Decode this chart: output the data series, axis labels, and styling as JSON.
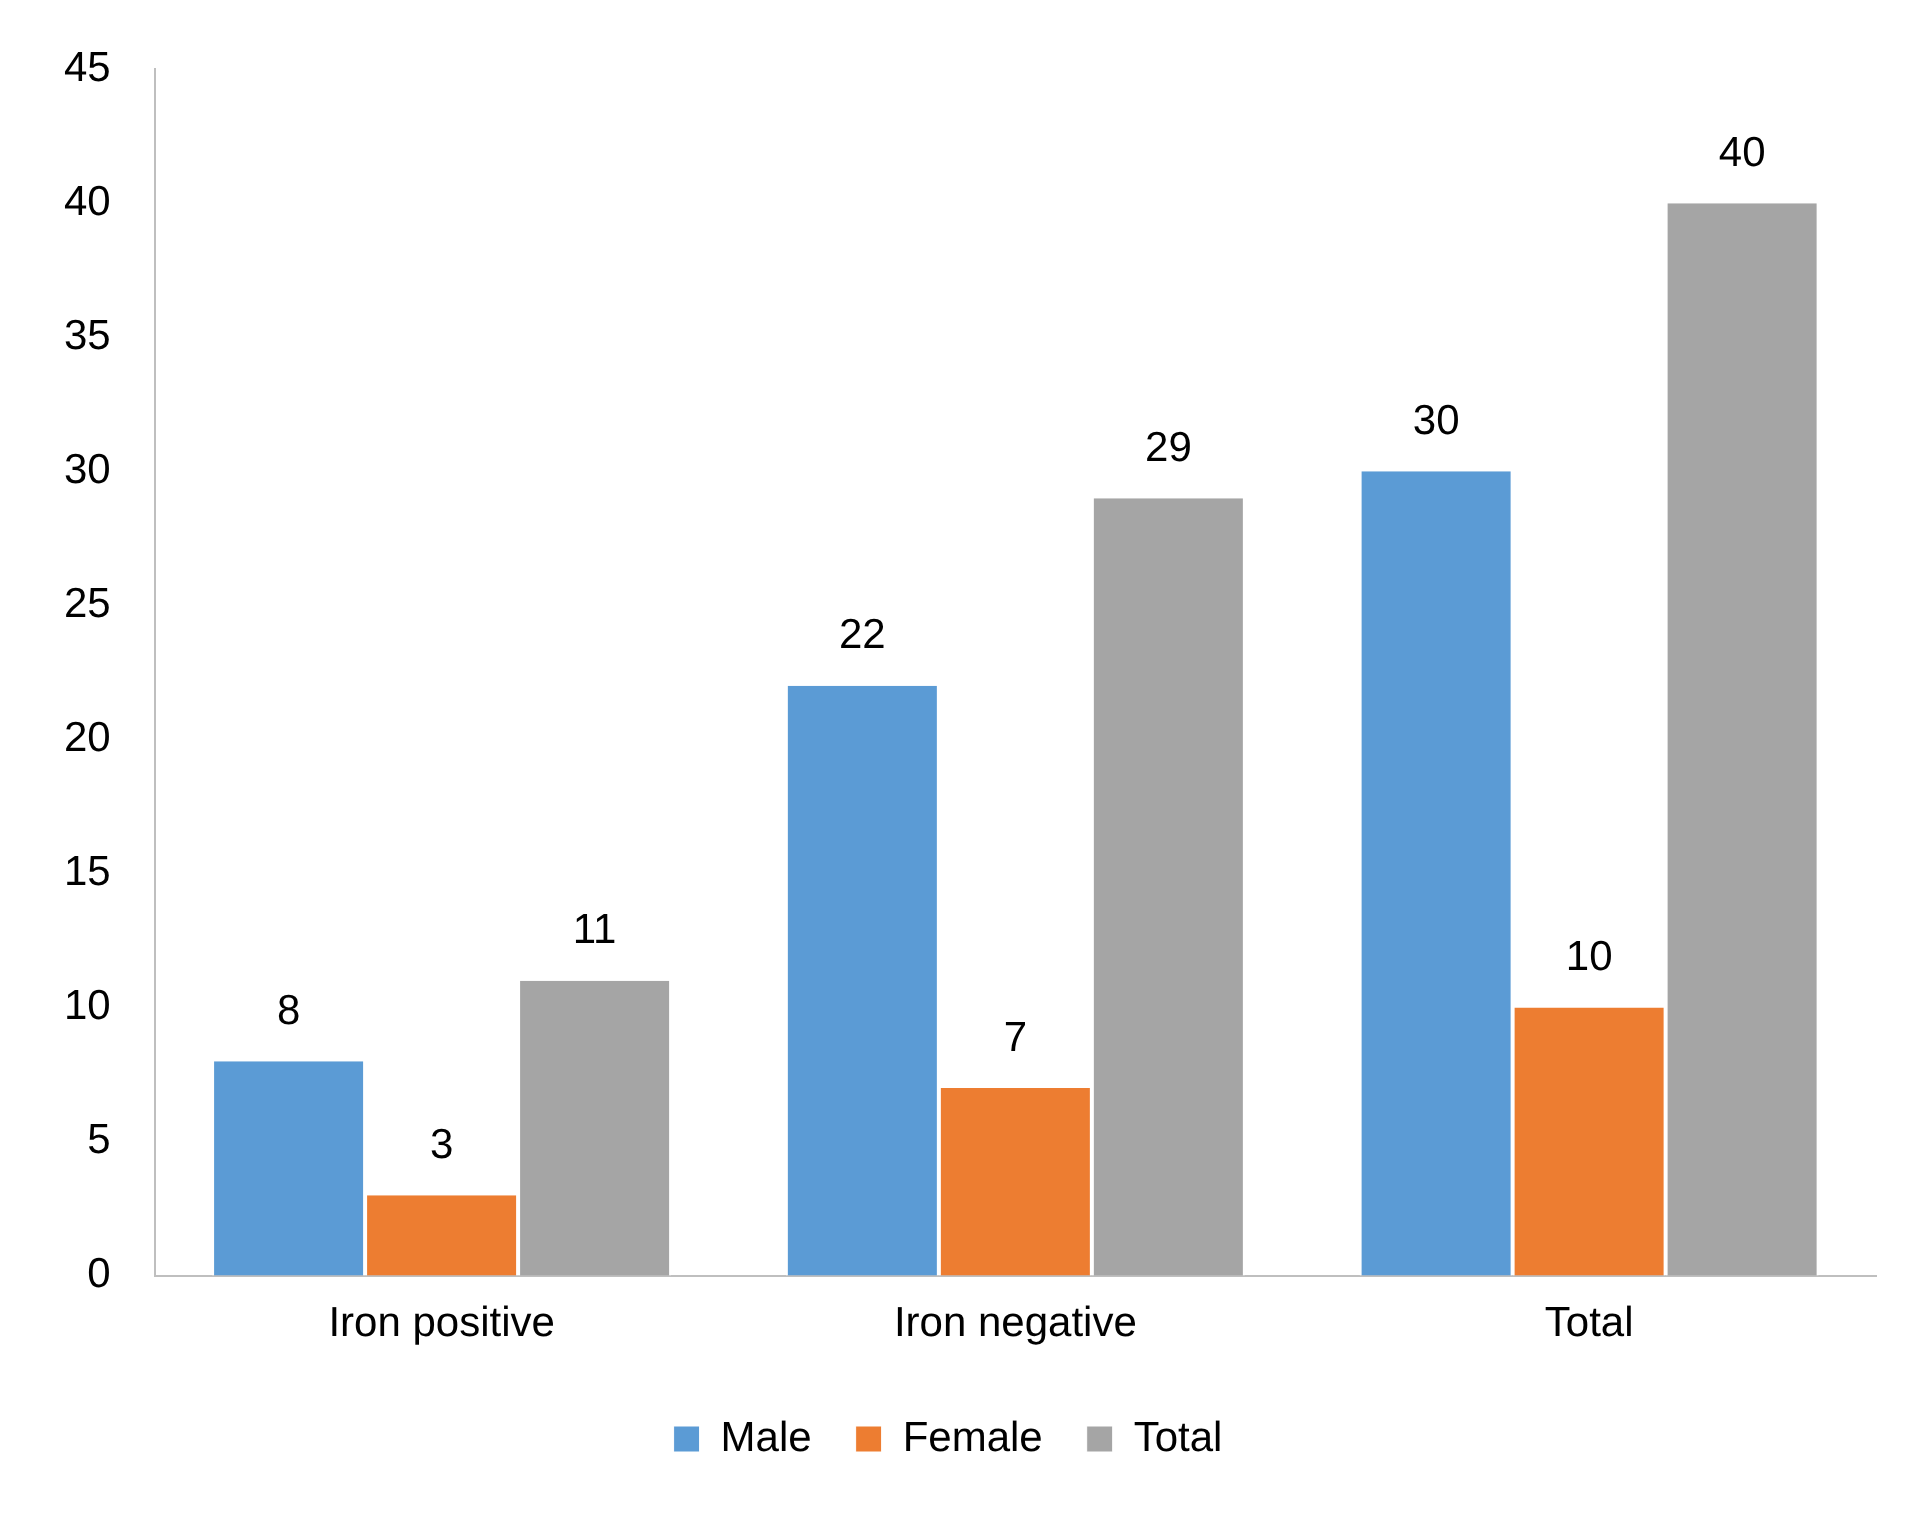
{
  "chart_data": {
    "type": "bar",
    "categories": [
      "Iron positive",
      "Iron negative",
      "Total"
    ],
    "series": [
      {
        "name": "Male",
        "color": "#5b9bd5",
        "values": [
          8,
          22,
          30
        ]
      },
      {
        "name": "Female",
        "color": "#ed7d31",
        "values": [
          3,
          7,
          10
        ]
      },
      {
        "name": "Total",
        "color": "#a5a5a5",
        "values": [
          11,
          29,
          40
        ]
      }
    ],
    "ylim": [
      0,
      45
    ],
    "yticks": [
      0,
      5,
      10,
      15,
      20,
      25,
      30,
      35,
      40,
      45
    ],
    "grid": false,
    "legend": "bottom",
    "data_labels": true
  }
}
